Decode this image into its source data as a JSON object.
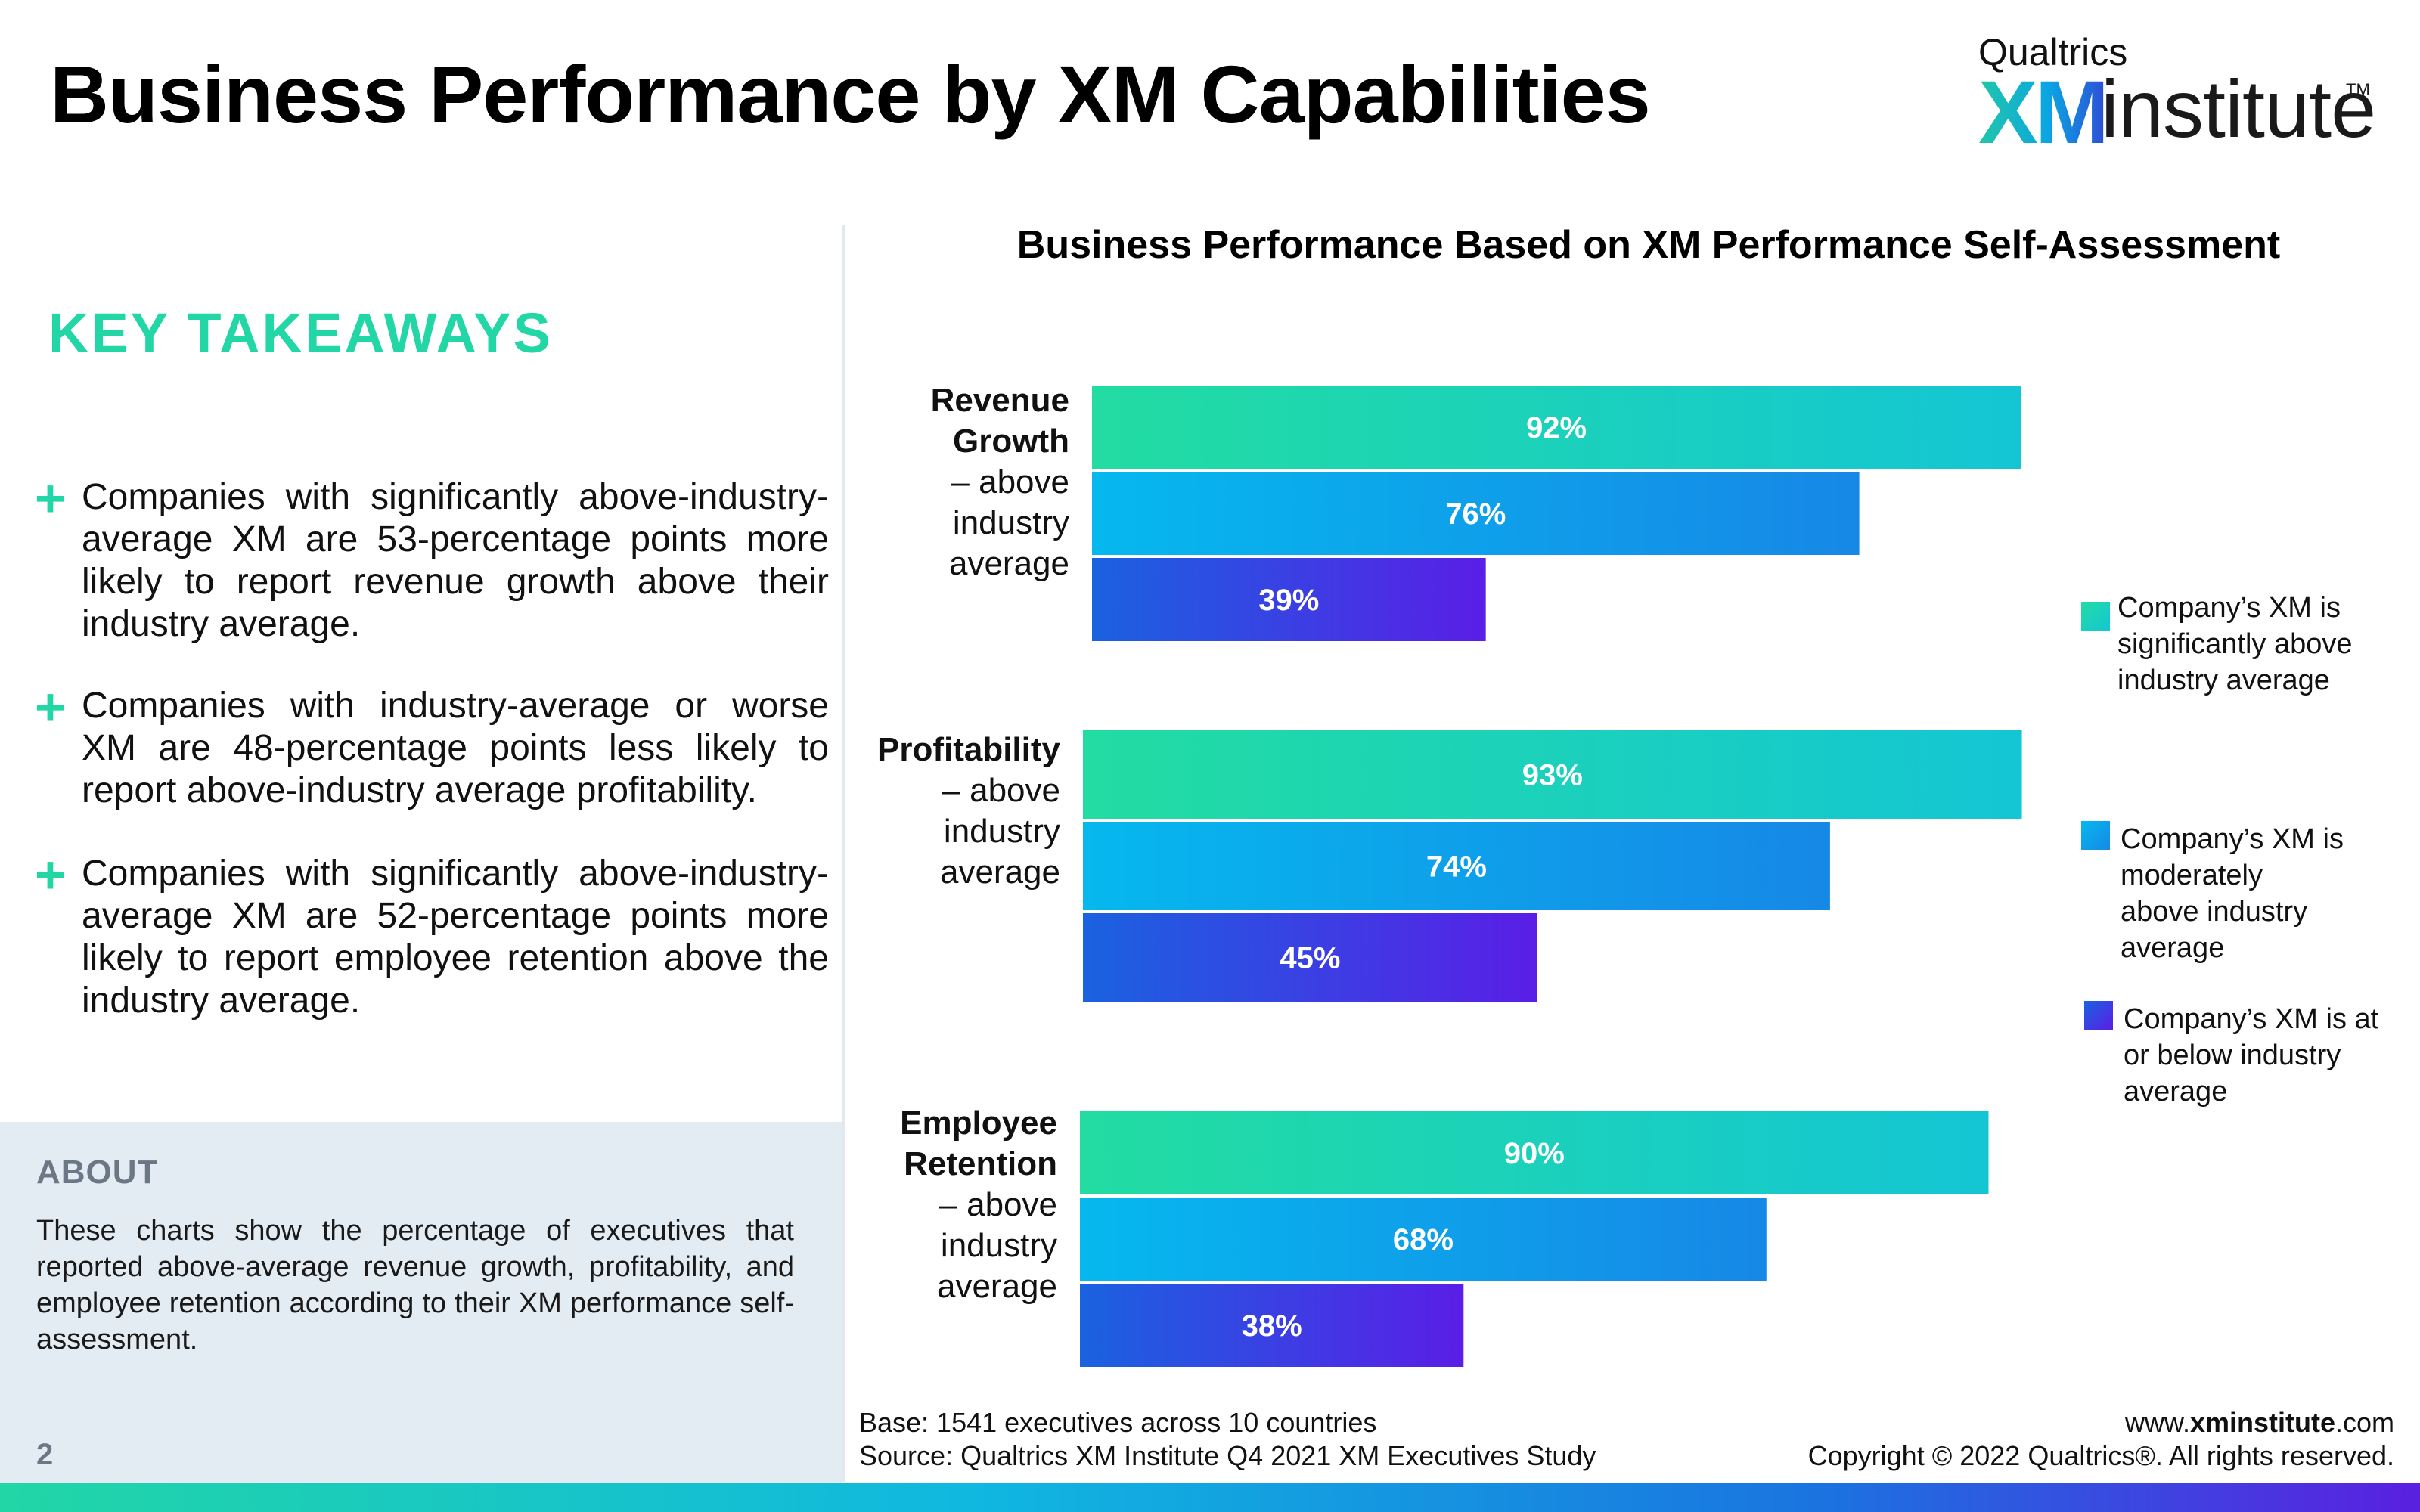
{
  "page": {
    "title": "Business Performance by XM Capabilities",
    "page_number": "2"
  },
  "logo": {
    "top": "Qualtrics",
    "xm": "XM",
    "institute": "institute",
    "tm": "TM"
  },
  "takeaways": {
    "title": "KEY TAKEAWAYS",
    "items": [
      "Companies with significantly above-industry-average XM are 53-percentage points more likely to report revenue growth above their industry average.",
      "Companies with industry-average or worse XM are 48-percentage points less likely to report above-industry average profitability.",
      "Companies with significantly above-industry-average XM are 52-percentage points more likely to report employee retention above the industry average."
    ]
  },
  "about": {
    "title": "ABOUT",
    "text": "These charts show the percentage of executives that reported above-average revenue growth, profitability, and employee retention according to their XM performance self-assessment."
  },
  "footer": {
    "base": "Base: 1541 executives across 10 countries",
    "source": "Source: Qualtrics XM Institute Q4 2021 XM Executives Study",
    "url_prefix": "www.",
    "url_bold": "xminstitute",
    "url_suffix": ".com",
    "copyright": "Copyright © 2022 Qualtrics®. All rights reserved."
  },
  "colors": {
    "accent": "#22d6a6",
    "series_1": "#1fd4ae",
    "series_2": "#0aa8e8",
    "series_3": "#4a2fe0"
  },
  "chart_data": {
    "type": "bar",
    "orientation": "horizontal",
    "title": "Business Performance Based on XM Performance Self-Assessment",
    "categories": [
      {
        "bold": "Revenue Growth",
        "rest": "– above industry average"
      },
      {
        "bold": "Profitability",
        "rest": "– above industry average"
      },
      {
        "bold": "Employee Retention",
        "rest": "– above industry average"
      }
    ],
    "series": [
      {
        "name": "Company’s XM is significantly above industry average",
        "values": [
          92,
          93,
          90
        ]
      },
      {
        "name": "Company’s XM is moderately above industry average",
        "values": [
          76,
          74,
          68
        ]
      },
      {
        "name": "Company’s XM is at or below industry average",
        "values": [
          39,
          45,
          38
        ]
      }
    ],
    "value_suffix": "%",
    "xlim": [
      0,
      100
    ],
    "legend_position": "right",
    "grid": false
  }
}
